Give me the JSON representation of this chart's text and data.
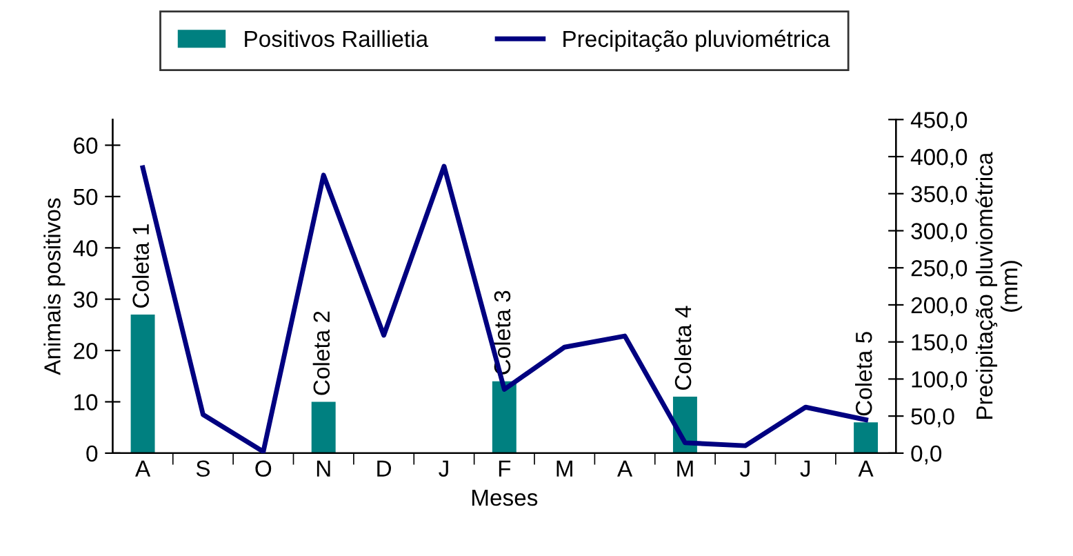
{
  "chart_data": {
    "type": "bar",
    "xlabel": "Meses",
    "ylabel": "Animais positivos",
    "y2label": "Precipitação pluviométrica\n(mm)",
    "categories": [
      "A",
      "S",
      "O",
      "N",
      "D",
      "J",
      "F",
      "M",
      "A",
      "M",
      "J",
      "J",
      "A"
    ],
    "series": [
      {
        "name": "Positivos Raillietia",
        "color": "#008080",
        "values": [
          27,
          null,
          null,
          10,
          null,
          null,
          14,
          null,
          null,
          11,
          null,
          null,
          6
        ],
        "value_labels": [
          "Coleta 1",
          null,
          null,
          "Coleta 2",
          null,
          null,
          "Coleta 3",
          null,
          null,
          "Coleta 4",
          null,
          null,
          "Coleta 5"
        ]
      },
      {
        "name": "Precipitação pluviométrica",
        "type": "line",
        "axis": "y2",
        "color": "#000080",
        "values": [
          385,
          52,
          2,
          375,
          159,
          387,
          86,
          143,
          158,
          14,
          10,
          62,
          45
        ]
      }
    ],
    "ylim": [
      0,
      65
    ],
    "yticks": [
      0,
      10,
      20,
      30,
      40,
      50,
      60
    ],
    "y2lim": [
      0,
      450
    ],
    "y2ticks": [
      {
        "value": 0,
        "label": "0,0"
      },
      {
        "value": 50,
        "label": "50,0"
      },
      {
        "value": 100,
        "label": "100,0"
      },
      {
        "value": 150,
        "label": "150,0"
      },
      {
        "value": 200,
        "label": "200,0"
      },
      {
        "value": 250,
        "label": "250,0"
      },
      {
        "value": 300,
        "label": "300,0"
      },
      {
        "value": 350,
        "label": "350,0"
      },
      {
        "value": 400,
        "label": "400,0"
      },
      {
        "value": 450,
        "label": "450,0"
      }
    ],
    "grid": false,
    "legend": "top",
    "marker": "none",
    "line_style": "solid"
  }
}
